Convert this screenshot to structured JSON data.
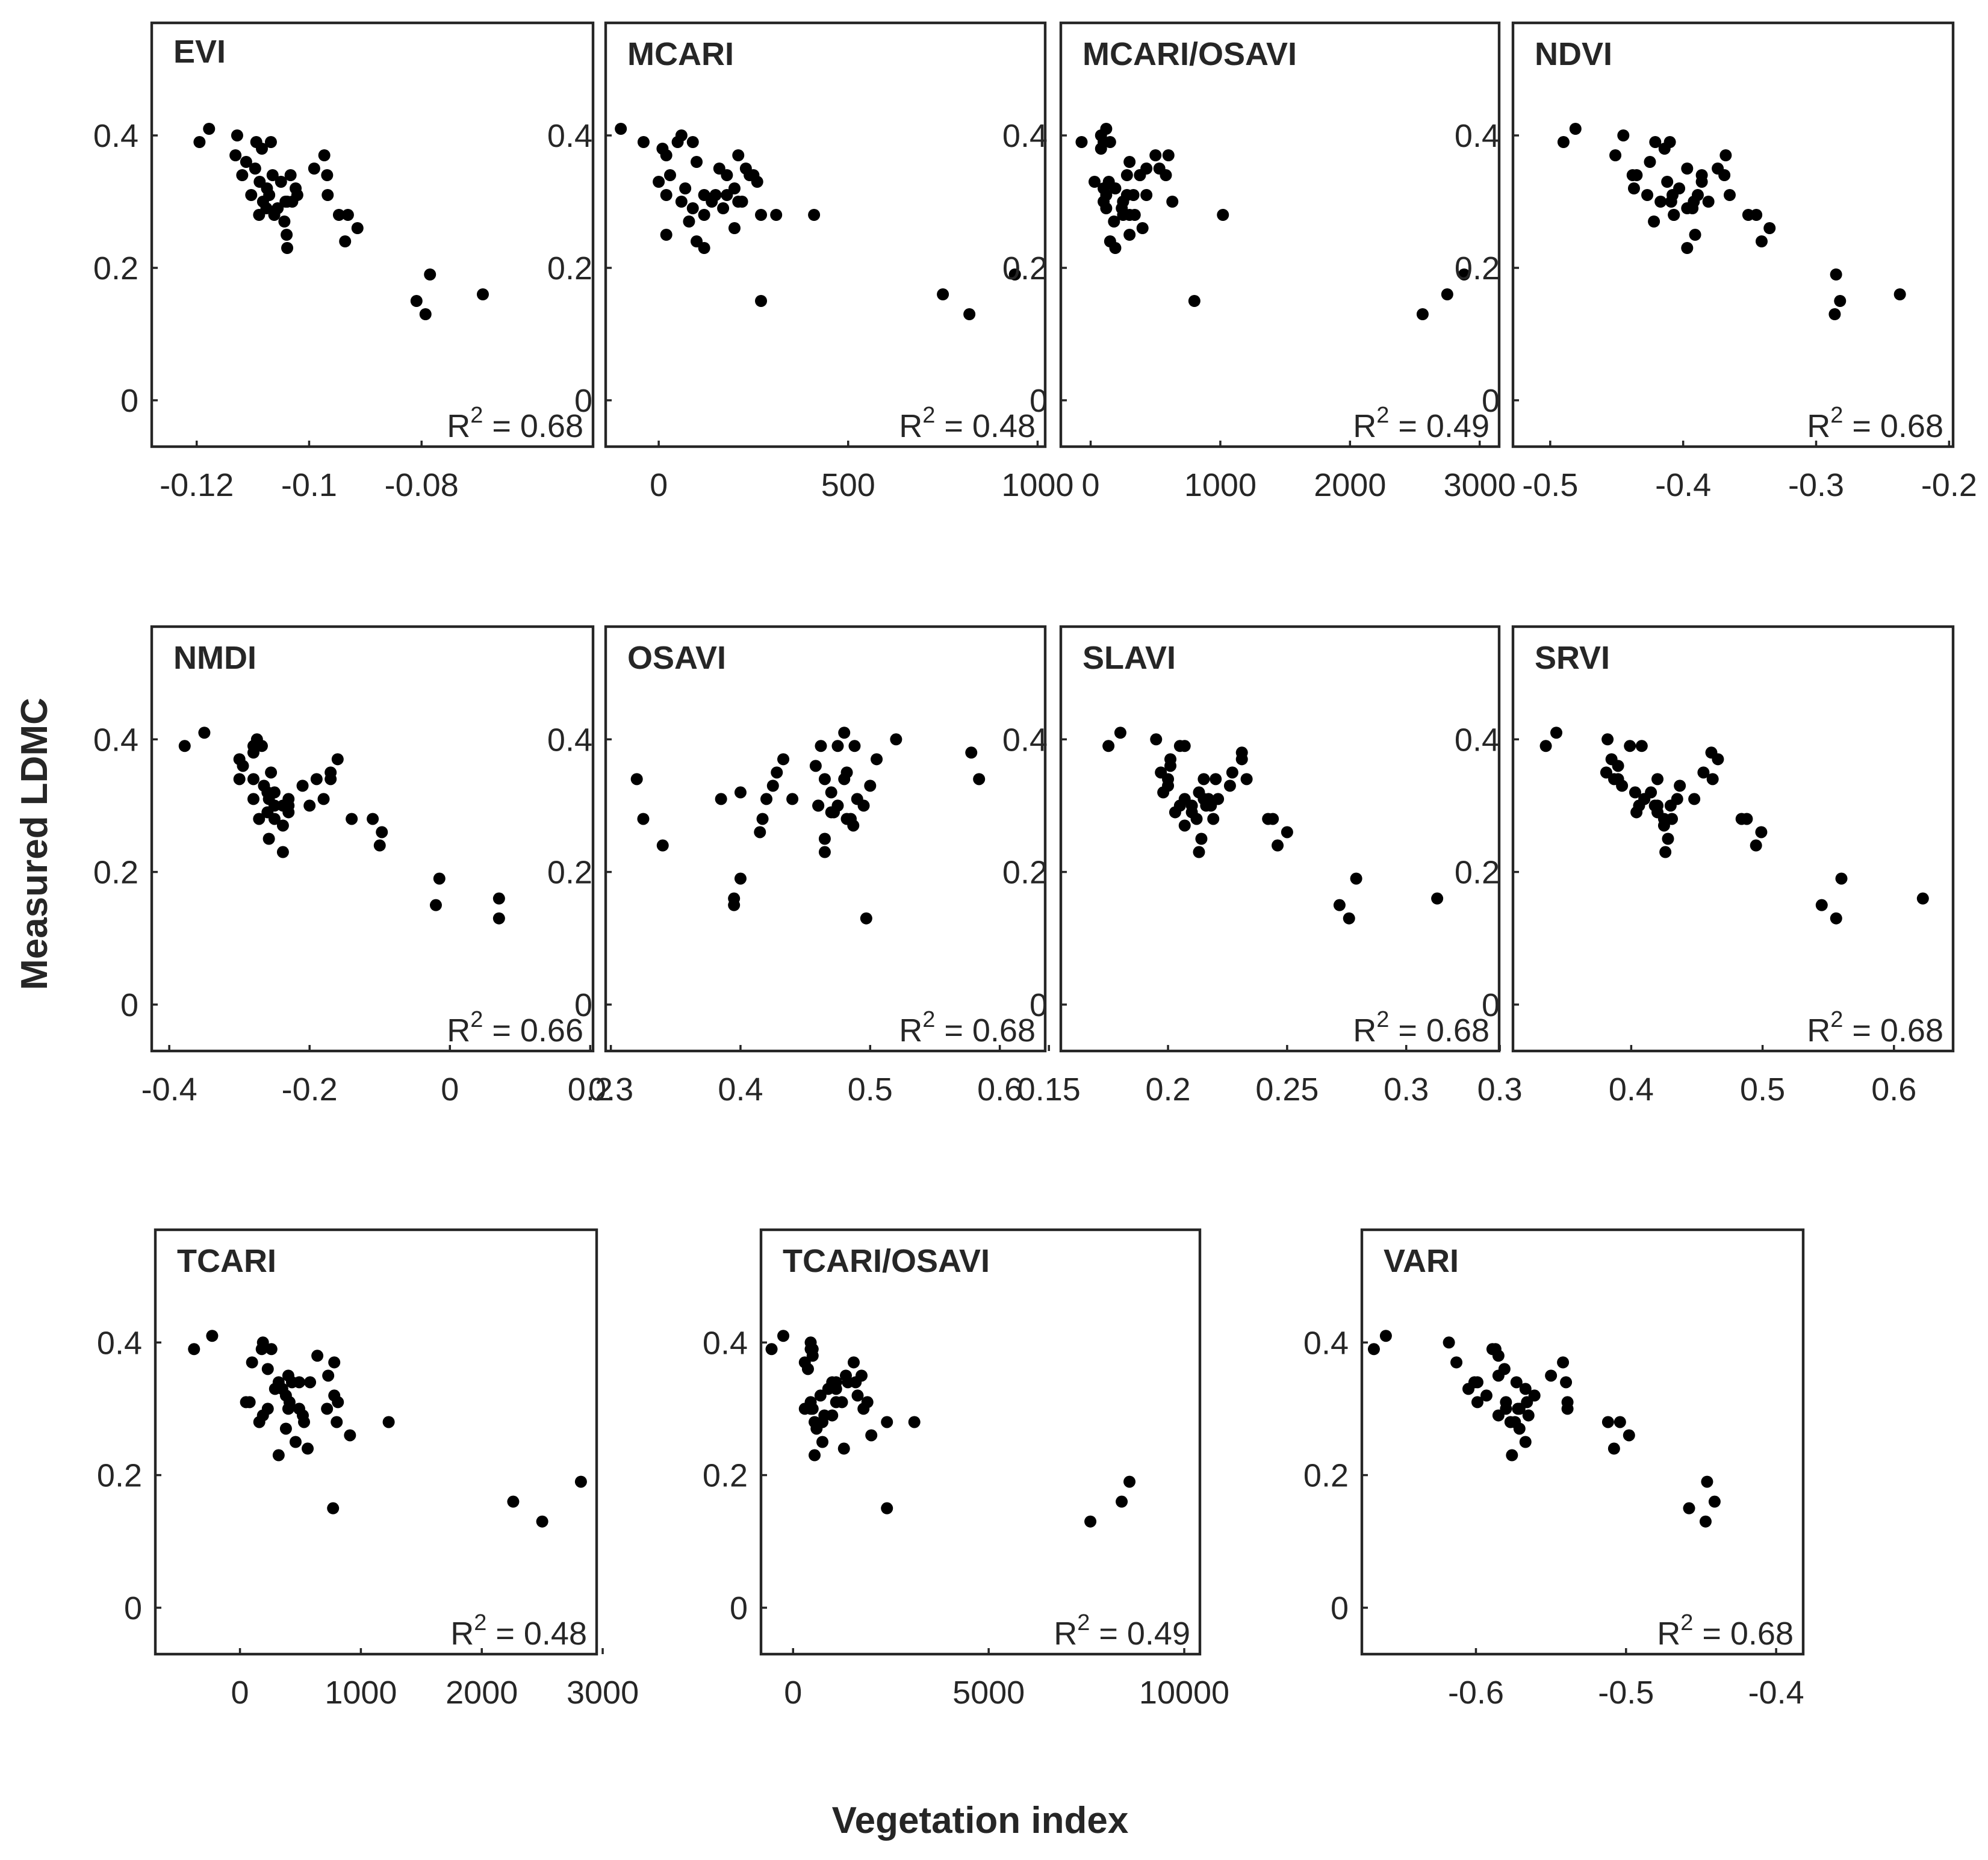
{
  "chart_data": {
    "type": "scatter",
    "ylabel": "Measured LDMC",
    "xlabel": "Vegetation index",
    "ylim": [
      -0.07,
      0.57
    ],
    "yticks": [
      0,
      0.2,
      0.4
    ],
    "yticklabels": [
      "0",
      "0.2",
      "0.4"
    ],
    "base_y": [
      0.39,
      0.41,
      0.4,
      0.37,
      0.34,
      0.35,
      0.38,
      0.39,
      0.39,
      0.36,
      0.33,
      0.31,
      0.34,
      0.32,
      0.3,
      0.29,
      0.28,
      0.31,
      0.3,
      0.33,
      0.34,
      0.27,
      0.25,
      0.23,
      0.29,
      0.28,
      0.3,
      0.31,
      0.32,
      0.35,
      0.37,
      0.31,
      0.34,
      0.3,
      0.28,
      0.24,
      0.26,
      0.28,
      0.15,
      0.19,
      0.13,
      0.16
    ],
    "panels": [
      {
        "title": "EVI",
        "r2_prefix": "R",
        "r2_sup": "2",
        "r2_value": " = 0.68",
        "xlim": [
          -0.128,
          -0.0495
        ],
        "xticks": [
          -0.12,
          -0.1,
          -0.08
        ],
        "xticklabels": [
          "-0.12",
          "-0.1",
          "-0.08"
        ],
        "x": [
          -0.1195,
          -0.1178,
          -0.1128,
          -0.1131,
          -0.1119,
          -0.1096,
          -0.1084,
          -0.1068,
          -0.1094,
          -0.1112,
          -0.1088,
          -0.1103,
          -0.1065,
          -0.1075,
          -0.1042,
          -0.1056,
          -0.1089,
          -0.1071,
          -0.1082,
          -0.105,
          -0.1033,
          -0.1044,
          -0.104,
          -0.1039,
          -0.1076,
          -0.1062,
          -0.103,
          -0.1021,
          -0.1024,
          -0.0991,
          -0.0973,
          -0.0967,
          -0.0968,
          -0.1039,
          -0.0947,
          -0.0936,
          -0.0914,
          -0.0931,
          -0.0809,
          -0.0785,
          -0.0793,
          -0.0691
        ]
      },
      {
        "title": "MCARI",
        "r2_prefix": "R",
        "r2_sup": "2",
        "r2_value": " = 0.48",
        "xlim": [
          -140,
          1020
        ],
        "xticks": [
          0,
          500,
          1000
        ],
        "xticklabels": [
          "0",
          "500",
          "1000"
        ],
        "x": [
          -40,
          -100,
          60,
          20,
          240,
          160,
          10,
          90,
          50,
          100,
          0,
          120,
          30,
          200,
          60,
          90,
          120,
          150,
          210,
          260,
          180,
          80,
          20,
          120,
          170,
          270,
          220,
          20,
          70,
          230,
          210,
          180,
          250,
          140,
          310,
          100,
          200,
          410,
          270,
          940,
          820,
          750
        ]
      },
      {
        "title": "MCARI/OSAVI",
        "r2_prefix": "R",
        "r2_sup": "2",
        "r2_value": " = 0.49",
        "xlim": [
          -230,
          3150
        ],
        "xticks": [
          0,
          1000,
          2000,
          3000
        ],
        "xticklabels": [
          "0",
          "1000",
          "2000",
          "3000"
        ],
        "x": [
          -70,
          120,
          80,
          500,
          280,
          430,
          80,
          150,
          100,
          300,
          30,
          120,
          380,
          190,
          250,
          120,
          300,
          330,
          100,
          140,
          380,
          180,
          300,
          190,
          240,
          340,
          250,
          280,
          100,
          530,
          600,
          430,
          580,
          630,
          250,
          150,
          400,
          1020,
          800,
          2880,
          2560,
          2750
        ]
      },
      {
        "title": "NDVI",
        "r2_prefix": "R",
        "r2_sup": "2",
        "r2_value": " = 0.68",
        "xlim": [
          -0.528,
          -0.197
        ],
        "xticks": [
          -0.5,
          -0.4,
          -0.3,
          -0.2
        ],
        "xticklabels": [
          "-0.5",
          "-0.4",
          "-0.3",
          "-0.2"
        ],
        "x": [
          -0.49,
          -0.481,
          -0.445,
          -0.451,
          -0.435,
          -0.397,
          -0.414,
          -0.421,
          -0.41,
          -0.425,
          -0.412,
          -0.408,
          -0.438,
          -0.437,
          -0.392,
          -0.397,
          -0.407,
          -0.427,
          -0.417,
          -0.386,
          -0.386,
          -0.422,
          -0.391,
          -0.397,
          -0.393,
          -0.407,
          -0.409,
          -0.389,
          -0.403,
          -0.374,
          -0.368,
          -0.365,
          -0.369,
          -0.381,
          -0.345,
          -0.341,
          -0.335,
          -0.351,
          -0.282,
          -0.285,
          -0.286,
          -0.237
        ]
      },
      {
        "title": "NMDI",
        "r2_prefix": "R",
        "r2_sup": "2",
        "r2_value": " = 0.66",
        "xlim": [
          -0.425,
          0.204
        ],
        "xticks": [
          -0.4,
          -0.2,
          0,
          0.2
        ],
        "xticklabels": [
          "-0.4",
          "-0.2",
          "0",
          "0.2"
        ],
        "x": [
          -0.378,
          -0.35,
          -0.275,
          -0.3,
          -0.3,
          -0.255,
          -0.28,
          -0.268,
          -0.28,
          -0.295,
          -0.265,
          -0.258,
          -0.28,
          -0.25,
          -0.238,
          -0.26,
          -0.25,
          -0.28,
          -0.23,
          -0.21,
          -0.19,
          -0.238,
          -0.258,
          -0.238,
          -0.23,
          -0.272,
          -0.25,
          -0.23,
          -0.26,
          -0.17,
          -0.16,
          -0.18,
          -0.17,
          -0.2,
          -0.14,
          -0.1,
          -0.097,
          -0.11,
          -0.02,
          -0.015,
          0.07,
          0.07
        ]
      },
      {
        "title": "OSAVI",
        "r2_prefix": "R",
        "r2_sup": "2",
        "r2_value": " = 0.68",
        "xlim": [
          0.296,
          0.635
        ],
        "xticks": [
          0.3,
          0.4,
          0.5,
          0.6
        ],
        "xticklabels": [
          "0.3",
          "0.4",
          "0.5",
          "0.6"
        ],
        "x": [
          0.488,
          0.48,
          0.52,
          0.505,
          0.465,
          0.482,
          0.578,
          0.475,
          0.462,
          0.458,
          0.5,
          0.49,
          0.584,
          0.47,
          0.475,
          0.47,
          0.485,
          0.44,
          0.46,
          0.425,
          0.48,
          0.487,
          0.465,
          0.465,
          0.472,
          0.482,
          0.495,
          0.385,
          0.4,
          0.428,
          0.433,
          0.42,
          0.32,
          0.46,
          0.417,
          0.34,
          0.415,
          0.325,
          0.395,
          0.4,
          0.497,
          0.395
        ]
      },
      {
        "title": "SLAVI",
        "r2_prefix": "R",
        "r2_sup": "2",
        "r2_value": " = 0.68",
        "xlim": [
          0.155,
          0.339
        ],
        "xticks": [
          0.15,
          0.2,
          0.25,
          0.3
        ],
        "xticklabels": [
          "0.15",
          "0.2",
          "0.25",
          "0.3"
        ],
        "x": [
          0.175,
          0.18,
          0.195,
          0.201,
          0.2,
          0.197,
          0.231,
          0.205,
          0.207,
          0.201,
          0.2,
          0.207,
          0.215,
          0.213,
          0.21,
          0.203,
          0.212,
          0.215,
          0.218,
          0.226,
          0.22,
          0.207,
          0.214,
          0.213,
          0.21,
          0.219,
          0.216,
          0.221,
          0.198,
          0.227,
          0.231,
          0.217,
          0.233,
          0.205,
          0.242,
          0.246,
          0.25,
          0.244,
          0.272,
          0.279,
          0.276,
          0.313
        ]
      },
      {
        "title": "SRVI",
        "r2_prefix": "R",
        "r2_sup": "2",
        "r2_value": " = 0.68",
        "xlim": [
          0.31,
          0.645
        ],
        "xticks": [
          0.3,
          0.4,
          0.5,
          0.6
        ],
        "xticklabels": [
          "0.3",
          "0.4",
          "0.5",
          "0.6"
        ],
        "x": [
          0.335,
          0.343,
          0.382,
          0.385,
          0.387,
          0.381,
          0.461,
          0.408,
          0.399,
          0.39,
          0.393,
          0.41,
          0.39,
          0.415,
          0.42,
          0.42,
          0.425,
          0.41,
          0.43,
          0.437,
          0.42,
          0.425,
          0.428,
          0.426,
          0.404,
          0.431,
          0.418,
          0.435,
          0.403,
          0.455,
          0.466,
          0.448,
          0.462,
          0.406,
          0.488,
          0.495,
          0.499,
          0.484,
          0.545,
          0.56,
          0.556,
          0.622
        ]
      },
      {
        "title": "TCARI",
        "r2_prefix": "R",
        "r2_sup": "2",
        "r2_value": " = 0.48",
        "xlim": [
          -700,
          2950
        ],
        "xticks": [
          0,
          1000,
          2000,
          3000
        ],
        "xticklabels": [
          "0",
          "1000",
          "2000",
          "3000"
        ],
        "x": [
          -380,
          -230,
          190,
          100,
          580,
          400,
          640,
          180,
          260,
          230,
          350,
          80,
          320,
          380,
          490,
          190,
          160,
          50,
          400,
          290,
          430,
          380,
          460,
          320,
          520,
          530,
          230,
          410,
          780,
          730,
          780,
          810,
          490,
          720,
          1230,
          560,
          910,
          800,
          770,
          2820,
          2500,
          2260
        ]
      },
      {
        "title": "TCARI/OSAVI",
        "r2_prefix": "R",
        "r2_sup": "2",
        "r2_value": " = 0.49",
        "xlim": [
          -820,
          10400
        ],
        "xticks": [
          0,
          5000,
          10000
        ],
        "xticklabels": [
          "0",
          "5000",
          "10000"
        ],
        "x": [
          -550,
          -250,
          450,
          300,
          1000,
          1350,
          500,
          450,
          500,
          380,
          900,
          1100,
          1100,
          700,
          500,
          1000,
          550,
          450,
          300,
          1100,
          1400,
          600,
          750,
          550,
          800,
          750,
          450,
          1250,
          1650,
          1750,
          1550,
          1900,
          1600,
          1800,
          3100,
          1300,
          2000,
          2400,
          2400,
          8600,
          7600,
          8400
        ]
      },
      {
        "title": "VARI",
        "r2_prefix": "R",
        "r2_sup": "2",
        "r2_value": " = 0.68",
        "xlim": [
          -0.676,
          -0.382
        ],
        "xticks": [
          -0.6,
          -0.5,
          -0.4
        ],
        "xticklabels": [
          "-0.6",
          "-0.5",
          "-0.4"
        ],
        "x": [
          -0.668,
          -0.66,
          -0.618,
          -0.613,
          -0.599,
          -0.585,
          -0.585,
          -0.587,
          -0.589,
          -0.581,
          -0.605,
          -0.599,
          -0.601,
          -0.593,
          -0.58,
          -0.585,
          -0.574,
          -0.58,
          -0.571,
          -0.567,
          -0.573,
          -0.571,
          -0.567,
          -0.576,
          -0.565,
          -0.577,
          -0.572,
          -0.566,
          -0.561,
          -0.55,
          -0.542,
          -0.539,
          -0.54,
          -0.539,
          -0.512,
          -0.508,
          -0.498,
          -0.504,
          -0.458,
          -0.446,
          -0.447,
          -0.441
        ]
      }
    ]
  }
}
